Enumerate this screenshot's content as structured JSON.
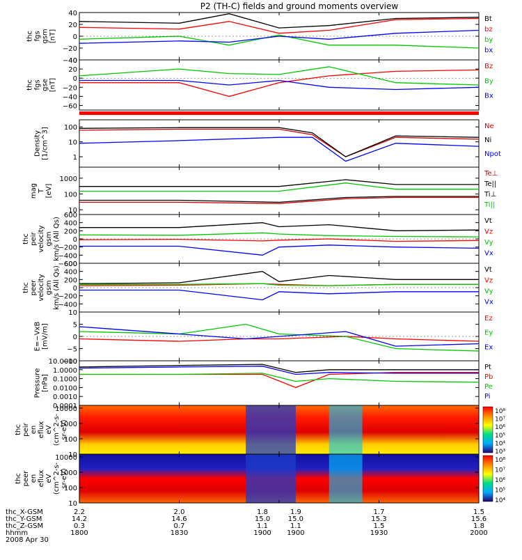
{
  "title": "P2 (TH-C) fields and ground moments overview",
  "status_bar_color": "#ff0000",
  "panels": [
    {
      "id": "fgs-gsm",
      "ylabel": [
        "thc",
        "fgs",
        "gsm",
        "[nT]"
      ],
      "ylim": [
        -40,
        40
      ],
      "scale": "linear",
      "ticks": [
        "40",
        "20",
        "0",
        "−20",
        "−40"
      ],
      "legend": [
        {
          "label": "Bt",
          "color": "#000000"
        },
        {
          "label": "bz",
          "color": "#ff0000"
        },
        {
          "label": "by",
          "color": "#00c800"
        },
        {
          "label": "bx",
          "color": "#0000ff"
        }
      ]
    },
    {
      "id": "fgs-gse",
      "ylabel": [
        "thc",
        "fgs",
        "gse",
        "[nT]"
      ],
      "ylim": [
        -70,
        40
      ],
      "scale": "linear",
      "ticks": [
        "40",
        "20",
        "0",
        "−20",
        "−40",
        "−60"
      ],
      "legend": [
        {
          "label": "Bz",
          "color": "#ff0000"
        },
        {
          "label": "By",
          "color": "#00c800"
        },
        {
          "label": "Bx",
          "color": "#0000ff"
        }
      ]
    },
    {
      "id": "density",
      "ylabel": [
        "Density",
        "[1/cm^3]"
      ],
      "ylim": [
        0.2,
        300
      ],
      "scale": "log",
      "ticks": [
        "100",
        "10",
        "1"
      ],
      "legend": [
        {
          "label": "Ne",
          "color": "#cc0000"
        },
        {
          "label": "Ni",
          "color": "#000000"
        },
        {
          "label": "Npot",
          "color": "#0000ff"
        }
      ]
    },
    {
      "id": "temperature",
      "ylabel": [
        "mag",
        "T",
        "[eV]"
      ],
      "ylim": [
        5,
        5000
      ],
      "scale": "log",
      "ticks": [
        "1000",
        "100",
        "10"
      ],
      "legend": [
        {
          "label": "Te⊥",
          "color": "#cc0000"
        },
        {
          "label": "Te||",
          "color": "#000000"
        },
        {
          "label": "Ti⊥",
          "color": "#000000"
        },
        {
          "label": "Ti||",
          "color": "#00c800"
        }
      ]
    },
    {
      "id": "peir-velocity",
      "ylabel": [
        "thc",
        "peir",
        "velocity",
        "gsm",
        "km/s (All Qs)"
      ],
      "ylim": [
        -600,
        600
      ],
      "scale": "linear",
      "ticks": [
        "600",
        "400",
        "200",
        "0",
        "−200",
        "−400",
        "−600"
      ],
      "legend": [
        {
          "label": "Vt",
          "color": "#000000"
        },
        {
          "label": "Vz",
          "color": "#ff0000"
        },
        {
          "label": "Vy",
          "color": "#00c800"
        },
        {
          "label": "Vx",
          "color": "#0000ff"
        }
      ]
    },
    {
      "id": "peer-velocity",
      "ylabel": [
        "thc",
        "peer",
        "velocity",
        "gsm",
        "km/s (All Qs)"
      ],
      "ylim": [
        -600,
        600
      ],
      "scale": "linear",
      "ticks": [
        "600",
        "400",
        "200",
        "0",
        "−200",
        "−400"
      ],
      "legend": [
        {
          "label": "Vt",
          "color": "#000000"
        },
        {
          "label": "Vz",
          "color": "#ff0000"
        },
        {
          "label": "Vy",
          "color": "#00c800"
        },
        {
          "label": "Vx",
          "color": "#0000ff"
        }
      ]
    },
    {
      "id": "efield",
      "ylabel": [
        "E=−VxB",
        "[mV/m]"
      ],
      "ylim": [
        -10,
        10
      ],
      "scale": "linear",
      "ticks": [
        "10",
        "5",
        "0",
        "−5",
        "−10"
      ],
      "legend": [
        {
          "label": "Ez",
          "color": "#ff0000"
        },
        {
          "label": "Ey",
          "color": "#00c800"
        },
        {
          "label": "Ex",
          "color": "#0000ff"
        }
      ]
    },
    {
      "id": "pressure",
      "ylabel": [
        "Pressure",
        "[nPa]"
      ],
      "ylim": [
        0.0001,
        10
      ],
      "scale": "log",
      "ticks": [
        "10.0000",
        "1.0000",
        "0.1000",
        "0.0100",
        "0.0010",
        "0.0001"
      ],
      "legend": [
        {
          "label": "Pt",
          "color": "#000000"
        },
        {
          "label": "Pb",
          "color": "#ff0000"
        },
        {
          "label": "Pe",
          "color": "#00c800"
        },
        {
          "label": "Pi",
          "color": "#0000ff"
        }
      ]
    },
    {
      "id": "peir-spec",
      "ylabel": [
        "thc",
        "peir",
        "en",
        "eflux",
        "eV",
        "(cm^2-s-",
        "sr-eV)"
      ],
      "ylim": [
        10,
        15000
      ],
      "scale": "log",
      "ticks": [
        "10000",
        "1000",
        "100",
        "10"
      ],
      "colorbar": [
        "10⁸",
        "10⁷",
        "10⁶",
        "10⁵",
        "10⁴",
        "10³"
      ]
    },
    {
      "id": "peer-spec",
      "ylabel": [
        "thc",
        "peer",
        "en",
        "eflux",
        "eV",
        "(cm^2-s-",
        "sr-eV)"
      ],
      "ylim": [
        10,
        15000
      ],
      "scale": "log",
      "ticks": [
        "10000",
        "1000",
        "100",
        "10"
      ],
      "colorbar": [
        "10⁸",
        "10⁷",
        "10⁶",
        "10⁵",
        "10⁴"
      ]
    }
  ],
  "xaxis": {
    "rows": [
      {
        "label": "thc_X-GSM",
        "values": [
          "2.2",
          "2.0",
          "1.8",
          "1.9",
          "1.7",
          "1.5"
        ]
      },
      {
        "label": "thc_Y-GSM",
        "values": [
          "14.2",
          "14.6",
          "15.0",
          "15.0",
          "15.3",
          "15.6"
        ]
      },
      {
        "label": "thc_Z-GSM",
        "values": [
          "0.3",
          "0.7",
          "1.1",
          "1.1",
          "1.5",
          "1.8"
        ]
      },
      {
        "label": "hhmm",
        "values": [
          "1800",
          "1830",
          "1900",
          "1900",
          "1930",
          "2000"
        ]
      }
    ],
    "date": "2008 Apr 30"
  },
  "chart_data": {
    "type": "line",
    "title": "P2 (TH-C) fields and ground moments overview",
    "x_range": [
      "1800",
      "2000"
    ],
    "x_ticks": [
      "1800",
      "1830",
      "1900",
      "1930",
      "2000"
    ],
    "panels": [
      {
        "name": "fgs-gsm",
        "ylim": [
          -40,
          40
        ],
        "series": [
          {
            "name": "Bt",
            "x": [
              1800,
              1830,
              1845,
              1900,
              1915,
              1935,
              2000
            ],
            "values": [
              25,
              22,
              38,
              14,
              18,
              30,
              32
            ]
          },
          {
            "name": "bz",
            "x": [
              1800,
              1830,
              1845,
              1900,
              1915,
              1935,
              2000
            ],
            "values": [
              15,
              12,
              25,
              5,
              10,
              28,
              30
            ]
          },
          {
            "name": "by",
            "x": [
              1800,
              1830,
              1845,
              1900,
              1915,
              1935,
              2000
            ],
            "values": [
              -5,
              0,
              -15,
              2,
              -15,
              -15,
              -20
            ]
          },
          {
            "name": "bx",
            "x": [
              1800,
              1830,
              1845,
              1900,
              1915,
              1935,
              2000
            ],
            "values": [
              -12,
              -8,
              -10,
              0,
              -5,
              5,
              10
            ]
          }
        ]
      },
      {
        "name": "fgs-gse",
        "ylim": [
          -70,
          40
        ],
        "series": [
          {
            "name": "Bz",
            "x": [
              1800,
              1830,
              1845,
              1900,
              1915,
              1935,
              2000
            ],
            "values": [
              -10,
              -10,
              -40,
              -10,
              5,
              15,
              18
            ]
          },
          {
            "name": "By",
            "x": [
              1800,
              1830,
              1845,
              1900,
              1915,
              1935,
              2000
            ],
            "values": [
              5,
              20,
              10,
              8,
              25,
              -10,
              -15
            ]
          },
          {
            "name": "Bx",
            "x": [
              1800,
              1830,
              1845,
              1900,
              1915,
              1935,
              2000
            ],
            "values": [
              -5,
              -5,
              -15,
              -5,
              -20,
              -25,
              -20
            ]
          }
        ]
      },
      {
        "name": "density",
        "ylim": [
          0.2,
          300
        ],
        "series": [
          {
            "name": "Ne",
            "x": [
              1800,
              1830,
              1900,
              1910,
              1920,
              1935,
              2000
            ],
            "values": [
              60,
              70,
              70,
              30,
              1,
              20,
              15
            ]
          },
          {
            "name": "Ni",
            "x": [
              1800,
              1830,
              1900,
              1910,
              1920,
              1935,
              2000
            ],
            "values": [
              80,
              90,
              90,
              40,
              1,
              25,
              20
            ]
          },
          {
            "name": "Npot",
            "x": [
              1800,
              1830,
              1900,
              1910,
              1920,
              1935,
              2000
            ],
            "values": [
              8,
              12,
              20,
              20,
              0.5,
              8,
              5
            ]
          }
        ]
      },
      {
        "name": "temperature",
        "ylim": [
          5,
          5000
        ],
        "series": [
          {
            "name": "Te⊥",
            "x": [
              1800,
              1830,
              1900,
              1920,
              1935,
              2000
            ],
            "values": [
              30,
              30,
              25,
              50,
              60,
              60
            ]
          },
          {
            "name": "Ti||",
            "x": [
              1800,
              1830,
              1900,
              1920,
              1935,
              2000
            ],
            "values": [
              150,
              150,
              150,
              500,
              200,
              200
            ]
          },
          {
            "name": "Te||",
            "x": [
              1800,
              1830,
              1900,
              1920,
              1935,
              2000
            ],
            "values": [
              40,
              40,
              30,
              60,
              70,
              70
            ]
          },
          {
            "name": "Ti⊥",
            "x": [
              1800,
              1830,
              1900,
              1920,
              1935,
              2000
            ],
            "values": [
              300,
              300,
              300,
              800,
              400,
              400
            ]
          }
        ]
      },
      {
        "name": "peir-velocity",
        "ylim": [
          -600,
          600
        ],
        "series": [
          {
            "name": "Vt",
            "x": [
              1800,
              1830,
              1855,
              1900,
              1915,
              1935,
              2000
            ],
            "values": [
              280,
              280,
              400,
              300,
              350,
              200,
              220
            ]
          },
          {
            "name": "Vz",
            "x": [
              1800,
              1830,
              1855,
              1900,
              1915,
              1935,
              2000
            ],
            "values": [
              -20,
              -10,
              -50,
              -30,
              0,
              -60,
              -40
            ]
          },
          {
            "name": "Vy",
            "x": [
              1800,
              1830,
              1855,
              1900,
              1915,
              1935,
              2000
            ],
            "values": [
              100,
              90,
              150,
              120,
              80,
              60,
              50
            ]
          },
          {
            "name": "Vx",
            "x": [
              1800,
              1830,
              1855,
              1900,
              1915,
              1935,
              2000
            ],
            "values": [
              -180,
              -180,
              -400,
              -200,
              -150,
              -200,
              -230
            ]
          }
        ]
      },
      {
        "name": "peer-velocity",
        "ylim": [
          -600,
          600
        ],
        "series": [
          {
            "name": "Vt",
            "x": [
              1800,
              1830,
              1855,
              1900,
              1915,
              1935,
              2000
            ],
            "values": [
              100,
              120,
              400,
              150,
              300,
              200,
              200
            ]
          },
          {
            "name": "Vz",
            "x": [
              1800,
              1830,
              1855,
              1900,
              1915,
              1935,
              2000
            ],
            "values": [
              50,
              60,
              100,
              80,
              50,
              80,
              80
            ]
          },
          {
            "name": "Vy",
            "x": [
              1800,
              1830,
              1855,
              1900,
              1915,
              1935,
              2000
            ],
            "values": [
              80,
              80,
              100,
              60,
              50,
              80,
              80
            ]
          },
          {
            "name": "Vx",
            "x": [
              1800,
              1830,
              1855,
              1900,
              1915,
              1935,
              2000
            ],
            "values": [
              -60,
              -60,
              -300,
              -100,
              -150,
              -100,
              -100
            ]
          }
        ]
      },
      {
        "name": "efield",
        "ylim": [
          -10,
          10
        ],
        "series": [
          {
            "name": "Ez",
            "x": [
              1800,
              1830,
              1850,
              1900,
              1920,
              1935,
              2000
            ],
            "values": [
              -1,
              -2,
              -1,
              -1,
              0,
              -1,
              -2
            ]
          },
          {
            "name": "Ey",
            "x": [
              1800,
              1830,
              1850,
              1900,
              1920,
              1935,
              2000
            ],
            "values": [
              2,
              1,
              5,
              1,
              0,
              -5,
              -6
            ]
          },
          {
            "name": "Ex",
            "x": [
              1800,
              1830,
              1850,
              1900,
              1920,
              1935,
              2000
            ],
            "values": [
              4,
              1,
              -1,
              0,
              2,
              -4,
              -3
            ]
          }
        ]
      },
      {
        "name": "pressure",
        "ylim": [
          0.0001,
          10
        ],
        "series": [
          {
            "name": "Pt",
            "x": [
              1800,
              1830,
              1855,
              1905,
              1915,
              1935,
              2000
            ],
            "values": [
              2,
              3,
              4,
              0.5,
              1,
              1,
              1
            ]
          },
          {
            "name": "Pb",
            "x": [
              1800,
              1830,
              1855,
              1905,
              1915,
              1935,
              2000
            ],
            "values": [
              0.3,
              0.3,
              0.3,
              0.01,
              0.3,
              0.5,
              0.5
            ]
          },
          {
            "name": "Pe",
            "x": [
              1800,
              1830,
              1855,
              1905,
              1915,
              1935,
              2000
            ],
            "values": [
              0.3,
              0.3,
              0.4,
              0.05,
              0.1,
              0.05,
              0.04
            ]
          },
          {
            "name": "Pi",
            "x": [
              1800,
              1830,
              1855,
              1905,
              1915,
              1935,
              2000
            ],
            "values": [
              1.5,
              2,
              2.5,
              0.3,
              0.5,
              0.4,
              0.4
            ]
          }
        ]
      }
    ]
  }
}
